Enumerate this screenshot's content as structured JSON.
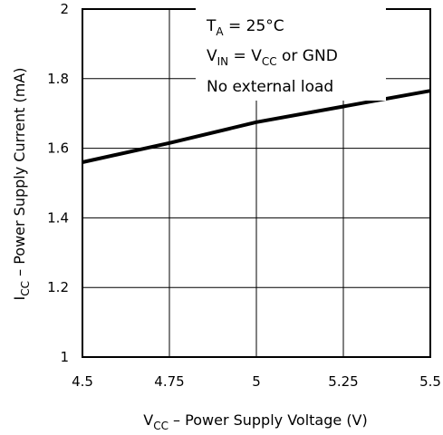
{
  "chart_data": {
    "type": "line",
    "xlabel": {
      "main": "V",
      "sub": "CC",
      "rest": " – Power Supply Voltage (V)"
    },
    "ylabel": {
      "main": "I",
      "sub": "CC",
      "rest": " – Power Supply Current (mA)"
    },
    "xlim": [
      4.5,
      5.5
    ],
    "ylim": [
      1,
      2
    ],
    "xticks": [
      "4.5",
      "4.75",
      "5",
      "5.25",
      "5.5"
    ],
    "xtick_values": [
      4.5,
      4.75,
      5,
      5.25,
      5.5
    ],
    "yticks": [
      "1",
      "1.2",
      "1.4",
      "1.6",
      "1.8",
      "2"
    ],
    "ytick_values": [
      1,
      1.2,
      1.4,
      1.6,
      1.8,
      2
    ],
    "grid": true,
    "series": [
      {
        "x": [
          4.5,
          4.75,
          5,
          5.25,
          5.5
        ],
        "values": [
          1.56,
          1.615,
          1.675,
          1.72,
          1.765
        ]
      }
    ],
    "annotations": [
      {
        "main": "T",
        "sub": "A",
        "rest": " = 25°C"
      },
      {
        "main": "V",
        "sub": "IN",
        "mid": " = V",
        "sub2": "CC",
        "rest": " or GND"
      },
      {
        "main": "No external load"
      }
    ]
  }
}
